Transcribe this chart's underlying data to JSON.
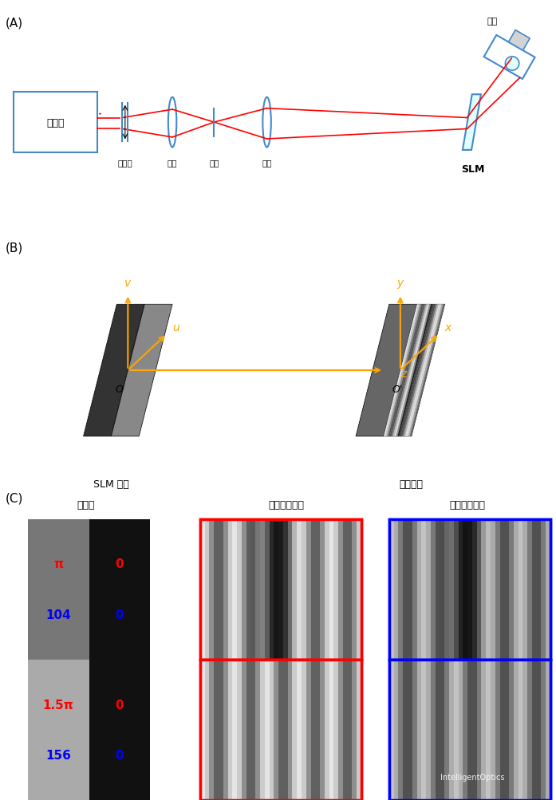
{
  "title": "",
  "bg_color": "#ffffff",
  "label_A": "(A)",
  "label_B": "(B)",
  "label_C": "(C)",
  "laser_text": "激光器",
  "hwp_text": "半波片",
  "lens1_text": "透镜",
  "pinhole_text": "针孔",
  "lens2_text": "透镜",
  "slm_text": "SLM",
  "camera_text": "相机",
  "slm_plane_text": "SLM 平面",
  "camera_plane_text": "相机平面",
  "hologram_text": "全息图",
  "theory_text": "理论衍射图样",
  "actual_text": "实拍衍射图样",
  "orange_color": "#FFA500",
  "red_color": "#FF0000",
  "blue_color": "#0000FF",
  "cyan_blue": "#4488CC",
  "beam_color": "#FF0000",
  "row1_phase": "π",
  "row1_gray": "104",
  "row2_phase": "1.5π",
  "row2_gray": "156",
  "watermark": "IntelligentOptics"
}
